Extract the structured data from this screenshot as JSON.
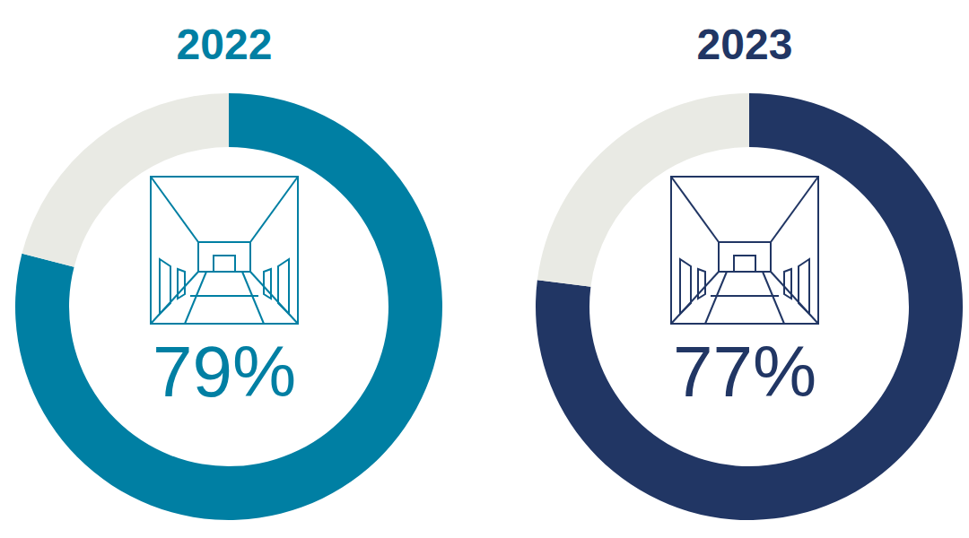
{
  "chart_data": [
    {
      "type": "pie",
      "title": "2022",
      "values": [
        79,
        21
      ],
      "value_labels": [
        "79%",
        null
      ],
      "colors": [
        "#007fa3",
        "#e9eae4"
      ]
    },
    {
      "type": "pie",
      "title": "2023",
      "values": [
        77,
        23
      ],
      "value_labels": [
        "77%",
        null
      ],
      "colors": [
        "#213664",
        "#e9eae4"
      ]
    }
  ]
}
